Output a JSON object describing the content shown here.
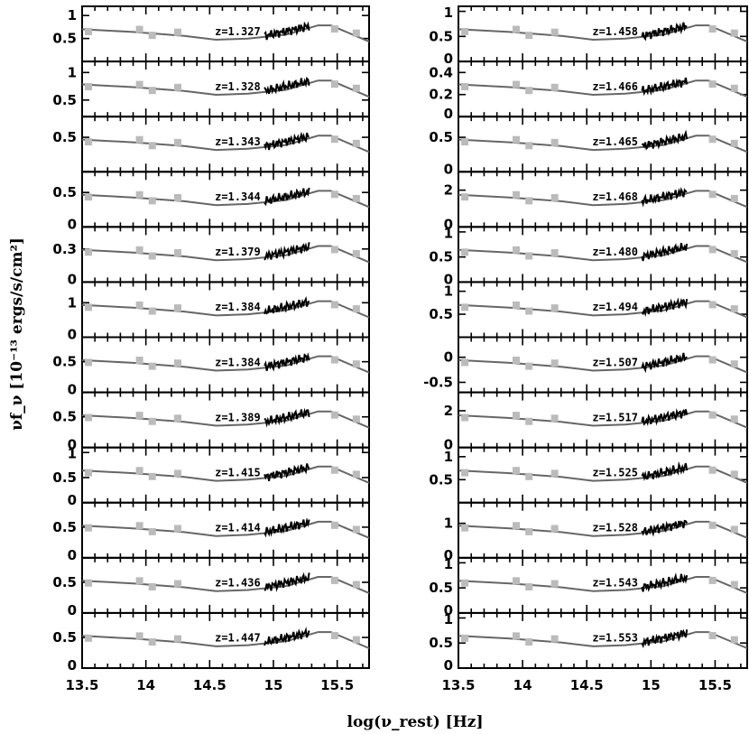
{
  "chart_data": {
    "type": "line",
    "title": "",
    "xlabel": "log(ν_rest) [Hz]",
    "ylabel": "νf_ν [10⁻¹³ ergs/s/cm²]",
    "xlim": [
      13.5,
      15.75
    ],
    "x_ticks": [
      "13.5",
      "14",
      "14.5",
      "15",
      "15.5"
    ],
    "columns": [
      {
        "panels": [
          {
            "z": "z=1.327",
            "y_ticks": [
              "1",
              "0.5"
            ],
            "ylim": [
              0,
              1.2
            ]
          },
          {
            "z": "z=1.328",
            "y_ticks": [
              "1",
              "0.5"
            ],
            "ylim": [
              0.2,
              1.2
            ]
          },
          {
            "z": "z=1.343",
            "y_ticks": [
              "0.5"
            ],
            "ylim": [
              0,
              0.8
            ]
          },
          {
            "z": "z=1.344",
            "y_ticks": [
              "0.5",
              "0"
            ],
            "ylim": [
              0,
              0.8
            ]
          },
          {
            "z": "z=1.379",
            "y_ticks": [
              "0.3",
              "0"
            ],
            "ylim": [
              0,
              0.5
            ]
          },
          {
            "z": "z=1.384",
            "y_ticks": [
              "1",
              "0"
            ],
            "ylim": [
              0,
              1.6
            ]
          },
          {
            "z": "z=1.384",
            "y_ticks": [
              "0.5",
              "0"
            ],
            "ylim": [
              0,
              0.9
            ]
          },
          {
            "z": "z=1.389",
            "y_ticks": [
              "0.5",
              "0"
            ],
            "ylim": [
              0,
              0.9
            ]
          },
          {
            "z": "z=1.415",
            "y_ticks": [
              "1",
              "0.5",
              "0"
            ],
            "ylim": [
              0,
              1.1
            ]
          },
          {
            "z": "z=1.414",
            "y_ticks": [
              "0.5",
              "0"
            ],
            "ylim": [
              0,
              0.9
            ]
          },
          {
            "z": "z=1.436",
            "y_ticks": [
              "0.5",
              "0"
            ],
            "ylim": [
              0,
              0.9
            ]
          },
          {
            "z": "z=1.447",
            "y_ticks": [
              "0.5",
              "0"
            ],
            "ylim": [
              0,
              0.9
            ]
          }
        ]
      },
      {
        "panels": [
          {
            "z": "z=1.458",
            "y_ticks": [
              "1",
              "0.5",
              "0"
            ],
            "ylim": [
              0,
              1.1
            ]
          },
          {
            "z": "z=1.466",
            "y_ticks": [
              "0.4",
              "0.2",
              "0"
            ],
            "ylim": [
              0,
              0.5
            ]
          },
          {
            "z": "z=1.465",
            "y_ticks": [
              "0.5",
              "0"
            ],
            "ylim": [
              0,
              0.8
            ]
          },
          {
            "z": "z=1.468",
            "y_ticks": [
              "2",
              "0"
            ],
            "ylim": [
              0,
              3
            ]
          },
          {
            "z": "z=1.480",
            "y_ticks": [
              "1",
              "0.5",
              "0"
            ],
            "ylim": [
              0,
              1.1
            ]
          },
          {
            "z": "z=1.494",
            "y_ticks": [
              "1",
              "0.5"
            ],
            "ylim": [
              0,
              1.2
            ]
          },
          {
            "z": "z=1.507",
            "y_ticks": [
              "0",
              "-0.5"
            ],
            "ylim": [
              -0.7,
              0.4
            ]
          },
          {
            "z": "z=1.517",
            "y_ticks": [
              "2",
              "0"
            ],
            "ylim": [
              0,
              3
            ]
          },
          {
            "z": "z=1.525",
            "y_ticks": [
              "1",
              "0.5"
            ],
            "ylim": [
              0,
              1.2
            ]
          },
          {
            "z": "z=1.528",
            "y_ticks": [
              "1",
              "0"
            ],
            "ylim": [
              0,
              1.6
            ]
          },
          {
            "z": "z=1.543",
            "y_ticks": [
              "1",
              "0.5",
              "0"
            ],
            "ylim": [
              0,
              1.1
            ]
          },
          {
            "z": "z=1.553",
            "y_ticks": [
              "1",
              "0.5",
              "0"
            ],
            "ylim": [
              0,
              1.1
            ]
          }
        ]
      }
    ],
    "grid": false,
    "legend": "none"
  }
}
